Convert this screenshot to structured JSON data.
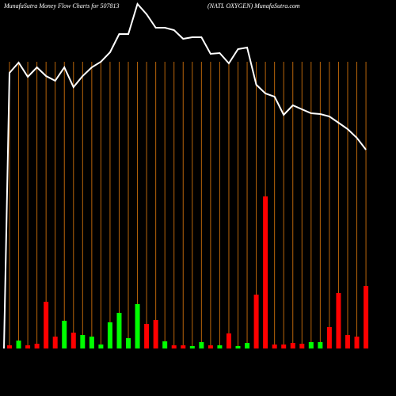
{
  "chart_data": {
    "type": "bar",
    "title": "MunafaSutra  Money Flow  Charts for 507813",
    "subtitle": "(NATL OXYGEN) MunafaSutra.com",
    "categories": [
      null,
      null,
      null,
      null,
      null,
      null,
      null,
      null,
      null,
      null,
      null,
      null,
      null,
      null,
      null,
      null,
      null,
      null,
      null,
      null,
      null,
      null,
      null,
      null,
      null,
      null,
      null,
      null,
      null,
      null,
      null,
      null,
      null,
      null,
      null,
      null,
      null,
      null,
      null,
      null
    ],
    "values": [
      4,
      10,
      4,
      6,
      59,
      15,
      35,
      20,
      17,
      15,
      5,
      33,
      45,
      13,
      56,
      31,
      36,
      9,
      4,
      4,
      3,
      8,
      4,
      4,
      19,
      3,
      7,
      68,
      192,
      5,
      5,
      7,
      6,
      8,
      8,
      27,
      70,
      17,
      15,
      79
    ],
    "colors": [
      "#ff0000",
      "#00ff00",
      "#ff0000",
      "#ff0000",
      "#ff0000",
      "#ff0000",
      "#00ff00",
      "#ff0000",
      "#00ff00",
      "#00ff00",
      "#00ff00",
      "#00ff00",
      "#00ff00",
      "#00ff00",
      "#00ff00",
      "#ff0000",
      "#ff0000",
      "#00ff00",
      "#ff0000",
      "#ff0000",
      "#00ff00",
      "#00ff00",
      "#ff0000",
      "#00ff00",
      "#ff0000",
      "#00ff00",
      "#00ff00",
      "#ff0000",
      "#ff0000",
      "#ff0000",
      "#ff0000",
      "#ff0000",
      "#ff0000",
      "#00ff00",
      "#00ff00",
      "#ff0000",
      "#ff0000",
      "#ff0000",
      "#ff0000",
      "#ff0000"
    ],
    "line_values": [
      408,
      421,
      403,
      415,
      404,
      398,
      415,
      390,
      404,
      415,
      422,
      434,
      457,
      457,
      495,
      482,
      465,
      465,
      462,
      451,
      453,
      453,
      432,
      433,
      420,
      438,
      440,
      393,
      382,
      378,
      355,
      367,
      362,
      357,
      356,
      353,
      345,
      337,
      326,
      311
    ],
    "line_color": "#ffffff",
    "gridline_color": "#b8650a"
  }
}
